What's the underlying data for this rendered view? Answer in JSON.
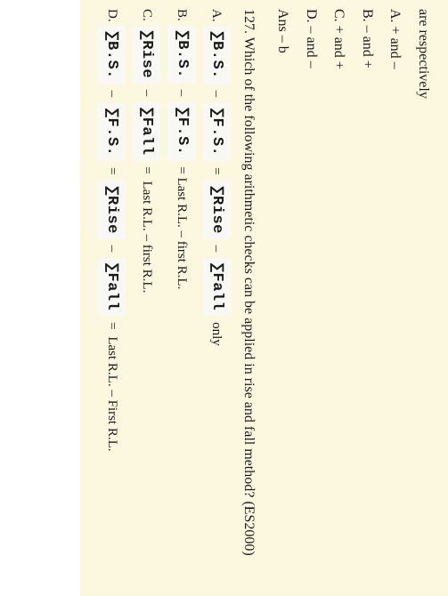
{
  "fragment_text": "are respectively",
  "prev_options": {
    "a": "A. + and –",
    "b": "B. – and +",
    "c": "C. + and +",
    "d": "D. – and –"
  },
  "prev_answer": "Ans – b",
  "question_number": "127.",
  "question_text": "Which of the following arithmetic checks can be applied in rise and fall method? (ES2000)",
  "formula_parts": {
    "sum_bs": "∑B.S.",
    "sum_fs": "∑F.S.",
    "sum_rise": "∑Rise",
    "sum_fall": "∑Fall"
  },
  "separators": {
    "minus": "–",
    "equals": "="
  },
  "option_labels": {
    "a": "A.",
    "b": "B.",
    "c": "C.",
    "d": "D."
  },
  "tails": {
    "only": "only",
    "last_first": "= Last R.L. – first R.L.",
    "last_first_c": "Last R.L. – first R.L.",
    "last_first_d": "Last R.L. – First R.L."
  },
  "colors": {
    "page_bg": "#fcf8df",
    "formula_bg": "#f8f8f5",
    "text": "#1a1a1a"
  }
}
